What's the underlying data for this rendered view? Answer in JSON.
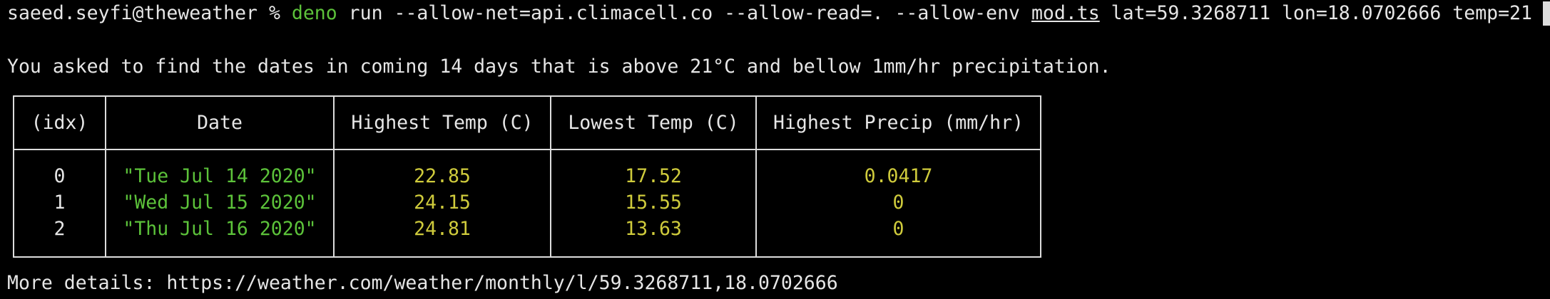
{
  "command": {
    "prompt": "saeed.seyfi@theweather %",
    "program": "deno",
    "args": "run --allow-net=api.climacell.co --allow-read=. --allow-env",
    "file": "mod.ts",
    "params": "lat=59.3268711 lon=18.0702666 temp=21"
  },
  "message": "You asked to find the dates in coming 14 days that is above 21°C and bellow 1mm/hr precipitation.",
  "table": {
    "headers": [
      "(idx)",
      "Date",
      "Highest Temp (C)",
      "Lowest Temp (C)",
      "Highest Precip (mm/hr)"
    ],
    "rows": [
      [
        "0",
        "\"Tue Jul 14 2020\"",
        "22.85",
        "17.52",
        "0.0417"
      ],
      [
        "1",
        "\"Wed Jul 15 2020\"",
        "24.15",
        "15.55",
        "0"
      ],
      [
        "2",
        "\"Thu Jul 16 2020\"",
        "24.81",
        "13.63",
        "0"
      ]
    ]
  },
  "footer": "More details: https://weather.com/weather/monthly/l/59.3268711,18.0702666"
}
